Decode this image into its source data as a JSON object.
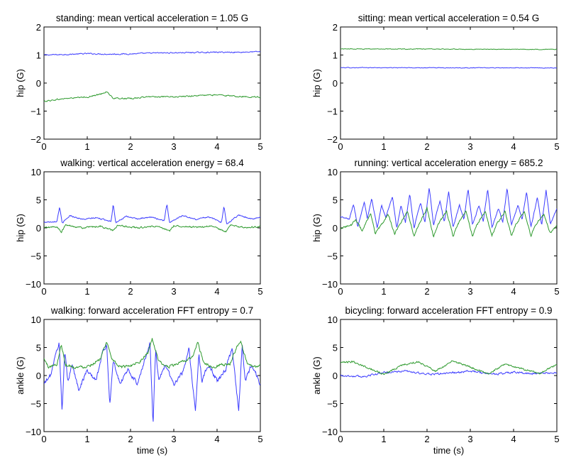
{
  "chart_data": [
    {
      "type": "line",
      "title": "standing: mean vertical acceleration = 1.05 G",
      "xlabel": "",
      "ylabel": "hip (G)",
      "xlim": [
        0,
        5
      ],
      "ylim": [
        -2,
        2
      ],
      "xticks": [
        "0",
        "1",
        "2",
        "3",
        "4",
        "5"
      ],
      "yticks": [
        "−2",
        "−1",
        "0",
        "1",
        "2"
      ],
      "series": [
        {
          "color": "#3d3dff",
          "t": [
            0,
            0.5,
            1.0,
            1.5,
            2.0,
            2.5,
            3.0,
            3.5,
            4.0,
            4.5,
            5.0
          ],
          "v": [
            1.0,
            1.02,
            1.05,
            1.03,
            1.04,
            1.07,
            1.08,
            1.09,
            1.1,
            1.1,
            1.12
          ],
          "noise": 0.035
        },
        {
          "color": "#2e9a2e",
          "t": [
            0,
            0.5,
            1.0,
            1.3,
            1.45,
            1.6,
            2.0,
            2.5,
            3.0,
            3.5,
            4.0,
            4.5,
            5.0
          ],
          "v": [
            -0.65,
            -0.55,
            -0.5,
            -0.4,
            -0.3,
            -0.55,
            -0.55,
            -0.48,
            -0.5,
            -0.45,
            -0.42,
            -0.48,
            -0.5
          ],
          "noise": 0.04
        }
      ]
    },
    {
      "type": "line",
      "title": "sitting: mean vertical acceleration = 0.54 G",
      "xlabel": "",
      "ylabel": "hip (G)",
      "xlim": [
        0,
        5
      ],
      "ylim": [
        -2,
        2
      ],
      "xticks": [
        "0",
        "1",
        "2",
        "3",
        "4",
        "5"
      ],
      "yticks": [
        "−2",
        "−1",
        "0",
        "1",
        "2"
      ],
      "series": [
        {
          "color": "#3d3dff",
          "t": [
            0,
            5
          ],
          "v": [
            0.55,
            0.54
          ],
          "noise": 0.02
        },
        {
          "color": "#2e9a2e",
          "t": [
            0,
            5
          ],
          "v": [
            1.22,
            1.2
          ],
          "noise": 0.02
        }
      ]
    },
    {
      "type": "line",
      "title": "walking: vertical acceleration energy = 68.4",
      "xlabel": "",
      "ylabel": "hip (G)",
      "xlim": [
        0,
        5
      ],
      "ylim": [
        -10,
        10
      ],
      "xticks": [
        "0",
        "1",
        "2",
        "3",
        "4",
        "5"
      ],
      "yticks": [
        "−10",
        "−5",
        "0",
        "5",
        "10"
      ],
      "series": [
        {
          "color": "#3d3dff",
          "t": [
            0,
            0.3,
            0.36,
            0.42,
            0.6,
            0.9,
            1.2,
            1.55,
            1.6,
            1.66,
            1.9,
            2.2,
            2.5,
            2.78,
            2.84,
            2.9,
            3.2,
            3.5,
            3.8,
            4.1,
            4.16,
            4.22,
            4.5,
            4.8,
            5.0
          ],
          "v": [
            1,
            1.2,
            3.8,
            0.8,
            2.2,
            1.5,
            1.8,
            1.2,
            4.2,
            1.0,
            2.0,
            1.6,
            1.9,
            1.3,
            4.3,
            1.0,
            2.2,
            1.5,
            2.0,
            1.0,
            3.8,
            0.7,
            2.3,
            1.6,
            1.8
          ],
          "noise": 0.2
        },
        {
          "color": "#2e9a2e",
          "t": [
            0,
            0.3,
            0.4,
            0.5,
            0.9,
            1.3,
            1.6,
            1.7,
            2.2,
            2.6,
            2.9,
            3.0,
            3.5,
            3.9,
            4.2,
            4.3,
            4.7,
            5.0
          ],
          "v": [
            0,
            0.2,
            -0.8,
            0.5,
            0.0,
            0.3,
            -0.5,
            0.4,
            0.0,
            0.3,
            -0.6,
            0.4,
            0.1,
            0.3,
            -0.7,
            0.5,
            0.0,
            0.3
          ],
          "noise": 0.25
        }
      ]
    },
    {
      "type": "line",
      "title": "running: vertical acceleration energy = 685.2",
      "xlabel": "",
      "ylabel": "hip (G)",
      "xlim": [
        0,
        5
      ],
      "ylim": [
        -10,
        10
      ],
      "xticks": [
        "0",
        "1",
        "2",
        "3",
        "4",
        "5"
      ],
      "yticks": [
        "−10",
        "−5",
        "0",
        "5",
        "10"
      ],
      "series": [
        {
          "color": "#3d3dff",
          "t": [
            0,
            0.2,
            0.3,
            0.4,
            0.55,
            0.62,
            0.72,
            0.85,
            0.95,
            1.05,
            1.2,
            1.3,
            1.4,
            1.5,
            1.6,
            1.7,
            1.85,
            1.95,
            2.05,
            2.15,
            2.3,
            2.4,
            2.5,
            2.6,
            2.75,
            2.85,
            2.95,
            3.05,
            3.2,
            3.3,
            3.4,
            3.5,
            3.65,
            3.75,
            3.85,
            3.95,
            4.1,
            4.2,
            4.3,
            4.4,
            4.55,
            4.65,
            4.75,
            4.85,
            5.0
          ],
          "v": [
            2,
            1.5,
            4.2,
            0.2,
            4.8,
            1.5,
            5.2,
            0.0,
            4.0,
            2.0,
            5.5,
            0.0,
            4.0,
            1.0,
            6.0,
            0.0,
            4.5,
            1.0,
            7.2,
            0.5,
            4.8,
            1.0,
            6.5,
            0.0,
            4.0,
            1.5,
            7.0,
            0.5,
            4.0,
            1.0,
            7.0,
            0.0,
            3.5,
            1.0,
            7.0,
            0.5,
            4.0,
            1.5,
            6.5,
            0.0,
            5.5,
            0.5,
            6.8,
            0.5,
            3.5
          ],
          "noise": 0.25
        },
        {
          "color": "#2e9a2e",
          "t": [
            0,
            0.25,
            0.35,
            0.5,
            0.7,
            0.8,
            0.95,
            1.1,
            1.25,
            1.4,
            1.55,
            1.7,
            1.8,
            2.0,
            2.15,
            2.25,
            2.45,
            2.6,
            2.7,
            2.9,
            3.05,
            3.15,
            3.35,
            3.5,
            3.6,
            3.8,
            3.95,
            4.05,
            4.25,
            4.4,
            4.5,
            4.7,
            4.85,
            5.0
          ],
          "v": [
            0,
            0.5,
            1.5,
            -0.5,
            2.5,
            -1.0,
            0.5,
            2.5,
            -1.0,
            1.0,
            3.0,
            -1.5,
            0.5,
            3.5,
            -1.5,
            0.5,
            3.0,
            -1.5,
            0.5,
            3.0,
            -1.5,
            0.5,
            3.0,
            -1.5,
            0.5,
            3.0,
            -1.5,
            0.5,
            3.0,
            -1.5,
            0.5,
            2.5,
            -1.0,
            0.5
          ],
          "noise": 0.3
        }
      ]
    },
    {
      "type": "line",
      "title": "walking: forward acceleration FFT entropy = 0.7",
      "xlabel": "",
      "ylabel": "ankle (G)",
      "xlim": [
        0,
        5
      ],
      "ylim": [
        -10,
        10
      ],
      "xticks": [
        "0",
        "1",
        "2",
        "3",
        "4",
        "5"
      ],
      "yticks": [
        "−10",
        "−5",
        "0",
        "5",
        "10"
      ],
      "series": [
        {
          "color": "#3d3dff",
          "t": [
            0,
            0.15,
            0.25,
            0.35,
            0.42,
            0.48,
            0.55,
            0.65,
            0.8,
            1.0,
            1.2,
            1.35,
            1.45,
            1.52,
            1.6,
            1.75,
            1.95,
            2.15,
            2.3,
            2.45,
            2.52,
            2.58,
            2.65,
            2.8,
            3.0,
            3.2,
            3.35,
            3.5,
            3.58,
            3.65,
            3.8,
            4.0,
            4.2,
            4.35,
            4.5,
            4.58,
            4.65,
            4.8,
            5.0
          ],
          "v": [
            -1.5,
            0,
            3.0,
            6.0,
            -6.8,
            4.5,
            -1.0,
            2.0,
            -2.5,
            1.0,
            -1.0,
            4.0,
            5.5,
            -5.5,
            3.0,
            -1.5,
            1.0,
            -1.5,
            2.0,
            6.0,
            -8.8,
            5.0,
            -1.0,
            2.0,
            -1.5,
            0.5,
            5.0,
            -6.5,
            4.0,
            -1.0,
            2.0,
            -1.0,
            1.0,
            5.0,
            -6.5,
            5.5,
            -1.0,
            2.0,
            -1.5
          ],
          "noise": 0.7
        },
        {
          "color": "#2e9a2e",
          "t": [
            0,
            0.1,
            0.3,
            0.4,
            0.5,
            0.7,
            0.9,
            1.1,
            1.3,
            1.45,
            1.6,
            1.8,
            2.0,
            2.2,
            2.4,
            2.5,
            2.65,
            2.85,
            3.05,
            3.25,
            3.45,
            3.55,
            3.7,
            3.9,
            4.1,
            4.3,
            4.45,
            4.55,
            4.7,
            4.9,
            5.0
          ],
          "v": [
            3.0,
            1.5,
            2.0,
            5.5,
            2.0,
            1.5,
            1.5,
            2.0,
            3.0,
            5.8,
            2.5,
            1.5,
            1.8,
            2.5,
            4.0,
            6.5,
            2.5,
            1.5,
            2.0,
            2.5,
            3.5,
            6.0,
            2.0,
            1.5,
            2.0,
            2.0,
            5.0,
            5.8,
            2.0,
            1.5,
            1.8
          ],
          "noise": 0.45
        }
      ]
    },
    {
      "type": "line",
      "title": "bicycling: forward acceleration FFT entropy = 0.9",
      "xlabel": "",
      "ylabel": "ankle (G)",
      "xlim": [
        0,
        5
      ],
      "ylim": [
        -10,
        10
      ],
      "xticks": [
        "0",
        "1",
        "2",
        "3",
        "4",
        "5"
      ],
      "yticks": [
        "−10",
        "−5",
        "0",
        "5",
        "10"
      ],
      "series": [
        {
          "color": "#3d3dff",
          "t": [
            0,
            0.5,
            1.0,
            1.5,
            2.0,
            2.5,
            3.0,
            3.5,
            4.0,
            4.5,
            5.0
          ],
          "v": [
            0,
            -0.2,
            0.5,
            0.8,
            0.2,
            0.4,
            0.8,
            0.2,
            0.6,
            0.3,
            0.5
          ],
          "noise": 0.3
        },
        {
          "color": "#2e9a2e",
          "t": [
            0,
            0.3,
            0.6,
            1.0,
            1.4,
            1.8,
            2.2,
            2.6,
            3.0,
            3.4,
            3.8,
            4.2,
            4.6,
            5.0
          ],
          "v": [
            2.2,
            2.5,
            1.5,
            0.2,
            1.8,
            2.5,
            0.8,
            2.6,
            1.5,
            0.3,
            2.0,
            1.2,
            0.3,
            2.0
          ],
          "noise": 0.3
        }
      ]
    }
  ],
  "shared_xlabel": "time (s)"
}
